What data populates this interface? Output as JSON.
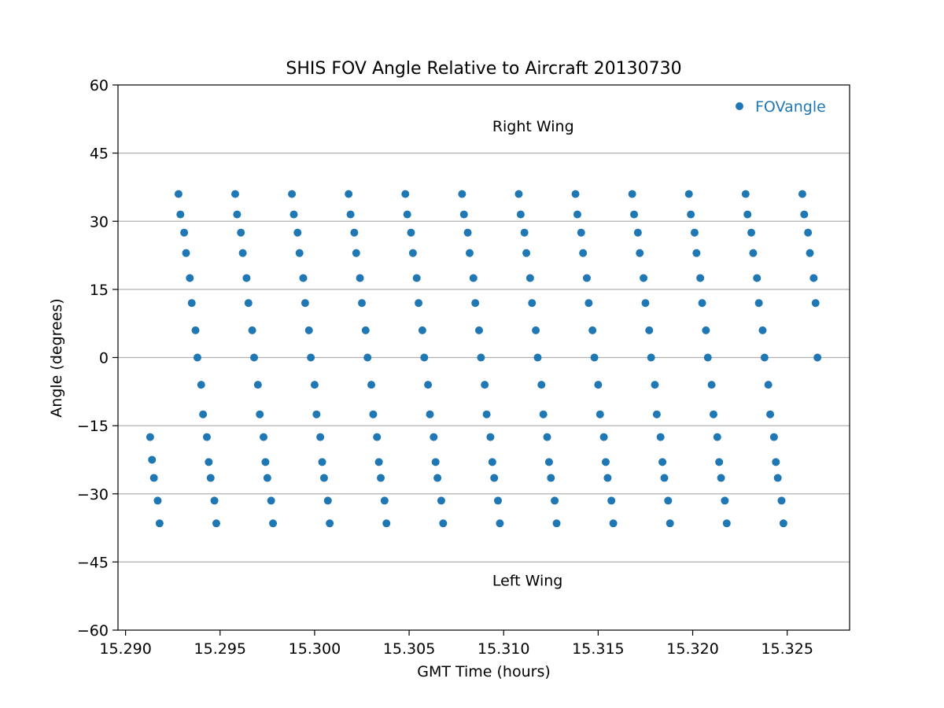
{
  "chart_data": {
    "type": "scatter",
    "title": "SHIS FOV Angle Relative to Aircraft 20130730",
    "xlabel": "GMT Time (hours)",
    "ylabel": "Angle (degrees)",
    "xlim": [
      15.2896,
      15.3283
    ],
    "ylim": [
      -60,
      60
    ],
    "xticks": [
      15.29,
      15.295,
      15.3,
      15.305,
      15.31,
      15.315,
      15.32,
      15.325
    ],
    "xtick_labels": [
      "15.290",
      "15.295",
      "15.300",
      "15.305",
      "15.310",
      "15.315",
      "15.320",
      "15.325"
    ],
    "yticks": [
      60,
      45,
      30,
      15,
      0,
      -15,
      -30,
      -45,
      -60
    ],
    "ytick_labels": [
      "60",
      "45",
      "30",
      "15",
      "0",
      "−15",
      "−30",
      "−45",
      "−60"
    ],
    "grid": "horizontal",
    "legend_position": "top-right",
    "series": [
      {
        "name": "FOVangle",
        "color": "#1f77b4",
        "x": [
          15.2913,
          15.2914,
          15.2915,
          15.2917,
          15.2918,
          15.2928,
          15.2929,
          15.2931,
          15.2932,
          15.2934,
          15.2935,
          15.2937,
          15.2938,
          15.294,
          15.2941,
          15.2943,
          15.2944,
          15.2945,
          15.2947,
          15.2948,
          15.2958,
          15.2959,
          15.2961,
          15.2962,
          15.2964,
          15.2965,
          15.2967,
          15.2968,
          15.297,
          15.2971,
          15.2973,
          15.2974,
          15.2975,
          15.2977,
          15.2978,
          15.2988,
          15.2989,
          15.2991,
          15.2992,
          15.2994,
          15.2995,
          15.2997,
          15.2998,
          15.3,
          15.3001,
          15.3003,
          15.3004,
          15.3005,
          15.3007,
          15.3008,
          15.3018,
          15.3019,
          15.3021,
          15.3022,
          15.3024,
          15.3025,
          15.3027,
          15.3028,
          15.303,
          15.3031,
          15.3033,
          15.3034,
          15.3035,
          15.3037,
          15.3038,
          15.3048,
          15.3049,
          15.3051,
          15.3052,
          15.3054,
          15.3055,
          15.3057,
          15.3058,
          15.306,
          15.3061,
          15.3063,
          15.3064,
          15.3065,
          15.3067,
          15.3068,
          15.3078,
          15.3079,
          15.3081,
          15.3082,
          15.3084,
          15.3085,
          15.3087,
          15.3088,
          15.309,
          15.3091,
          15.3093,
          15.3094,
          15.3095,
          15.3097,
          15.3098,
          15.3108,
          15.3109,
          15.3111,
          15.3112,
          15.3114,
          15.3115,
          15.3117,
          15.3118,
          15.312,
          15.3121,
          15.3123,
          15.3124,
          15.3125,
          15.3127,
          15.3128,
          15.3138,
          15.3139,
          15.3141,
          15.3142,
          15.3144,
          15.3145,
          15.3147,
          15.3148,
          15.315,
          15.3151,
          15.3153,
          15.3154,
          15.3155,
          15.3157,
          15.3158,
          15.3168,
          15.3169,
          15.3171,
          15.3172,
          15.3174,
          15.3175,
          15.3177,
          15.3178,
          15.318,
          15.3181,
          15.3183,
          15.3184,
          15.3185,
          15.3187,
          15.3188,
          15.3198,
          15.3199,
          15.3201,
          15.3202,
          15.3204,
          15.3205,
          15.3207,
          15.3208,
          15.321,
          15.3211,
          15.3213,
          15.3214,
          15.3215,
          15.3217,
          15.3218,
          15.3228,
          15.3229,
          15.3231,
          15.3232,
          15.3234,
          15.3235,
          15.3237,
          15.3238,
          15.324,
          15.3241,
          15.3243,
          15.3244,
          15.3245,
          15.3247,
          15.3248,
          15.3258,
          15.3259,
          15.3261,
          15.3262,
          15.3264,
          15.3265,
          15.3266
        ],
        "y": [
          -17.5,
          -22.5,
          -26.5,
          -31.5,
          -36.5,
          36,
          31.5,
          27.5,
          23,
          17.5,
          12,
          6,
          0,
          -6,
          -12.5,
          -17.5,
          -23,
          -26.5,
          -31.5,
          -36.5,
          36,
          31.5,
          27.5,
          23,
          17.5,
          12,
          6,
          0,
          -6,
          -12.5,
          -17.5,
          -23,
          -26.5,
          -31.5,
          -36.5,
          36,
          31.5,
          27.5,
          23,
          17.5,
          12,
          6,
          0,
          -6,
          -12.5,
          -17.5,
          -23,
          -26.5,
          -31.5,
          -36.5,
          36,
          31.5,
          27.5,
          23,
          17.5,
          12,
          6,
          0,
          -6,
          -12.5,
          -17.5,
          -23,
          -26.5,
          -31.5,
          -36.5,
          36,
          31.5,
          27.5,
          23,
          17.5,
          12,
          6,
          0,
          -6,
          -12.5,
          -17.5,
          -23,
          -26.5,
          -31.5,
          -36.5,
          36,
          31.5,
          27.5,
          23,
          17.5,
          12,
          6,
          0,
          -6,
          -12.5,
          -17.5,
          -23,
          -26.5,
          -31.5,
          -36.5,
          36,
          31.5,
          27.5,
          23,
          17.5,
          12,
          6,
          0,
          -6,
          -12.5,
          -17.5,
          -23,
          -26.5,
          -31.5,
          -36.5,
          36,
          31.5,
          27.5,
          23,
          17.5,
          12,
          6,
          0,
          -6,
          -12.5,
          -17.5,
          -23,
          -26.5,
          -31.5,
          -36.5,
          36,
          31.5,
          27.5,
          23,
          17.5,
          12,
          6,
          0,
          -6,
          -12.5,
          -17.5,
          -23,
          -26.5,
          -31.5,
          -36.5,
          36,
          31.5,
          27.5,
          23,
          17.5,
          12,
          6,
          0,
          -6,
          -12.5,
          -17.5,
          -23,
          -26.5,
          -31.5,
          -36.5,
          36,
          31.5,
          27.5,
          23,
          17.5,
          12,
          6,
          0,
          -6,
          -12.5,
          -17.5,
          -23,
          -26.5,
          -31.5,
          -36.5,
          36,
          31.5,
          27.5,
          23,
          17.5,
          12,
          0
        ]
      }
    ],
    "annotations": [
      {
        "text": "Right Wing",
        "x": 15.3094,
        "y": 51
      },
      {
        "text": "Left Wing",
        "x": 15.3094,
        "y": -49
      }
    ]
  }
}
